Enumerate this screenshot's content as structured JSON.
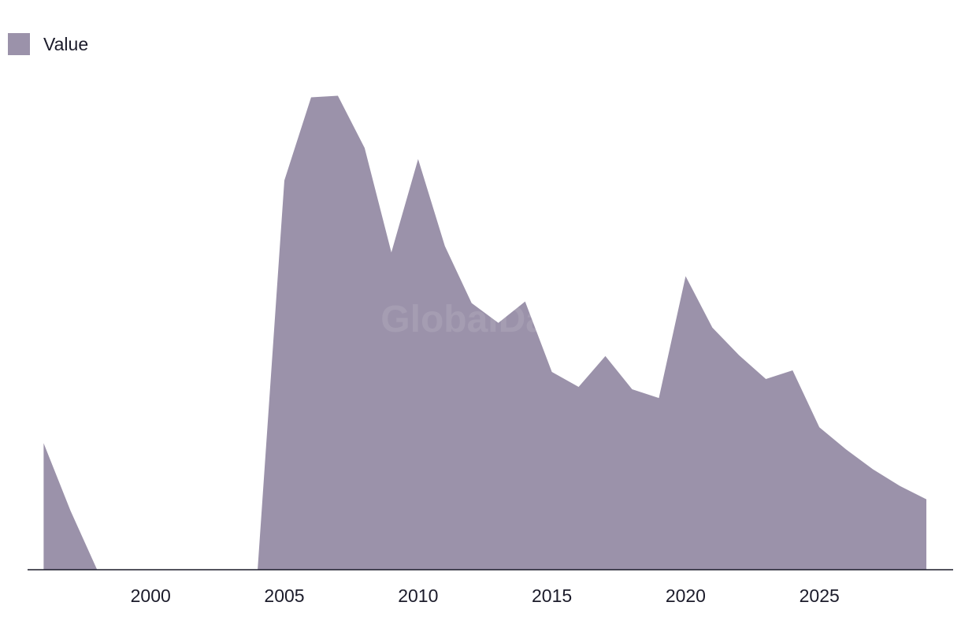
{
  "chart_data": {
    "type": "area",
    "x": [
      1996,
      1997,
      1998,
      1999,
      2000,
      2001,
      2002,
      2003,
      2004,
      2005,
      2006,
      2007,
      2008,
      2009,
      2010,
      2011,
      2012,
      2013,
      2014,
      2015,
      2016,
      2017,
      2018,
      2019,
      2020,
      2021,
      2022,
      2023,
      2024,
      2025,
      2026,
      2027,
      2028,
      2029
    ],
    "series": [
      {
        "name": "Value",
        "values": [
          160,
          75,
          0,
          0,
          0,
          0,
          0,
          0,
          0,
          492,
          597,
          599,
          533,
          401,
          519,
          409,
          337,
          312,
          339,
          250,
          231,
          270,
          228,
          217,
          371,
          306,
          271,
          241,
          252,
          180,
          152,
          127,
          106,
          89
        ]
      }
    ],
    "xticks": [
      2000,
      2005,
      2010,
      2015,
      2020,
      2025
    ],
    "xlim": [
      1995.4,
      2030.0
    ],
    "ylim": [
      0,
      720
    ],
    "grid": false,
    "legend_position": "top-left",
    "colors": {
      "area": "#9b92aa",
      "axis": "#1b1b2a"
    }
  },
  "legend": {
    "label": "Value"
  },
  "watermark": {
    "text": "GlobalData"
  }
}
